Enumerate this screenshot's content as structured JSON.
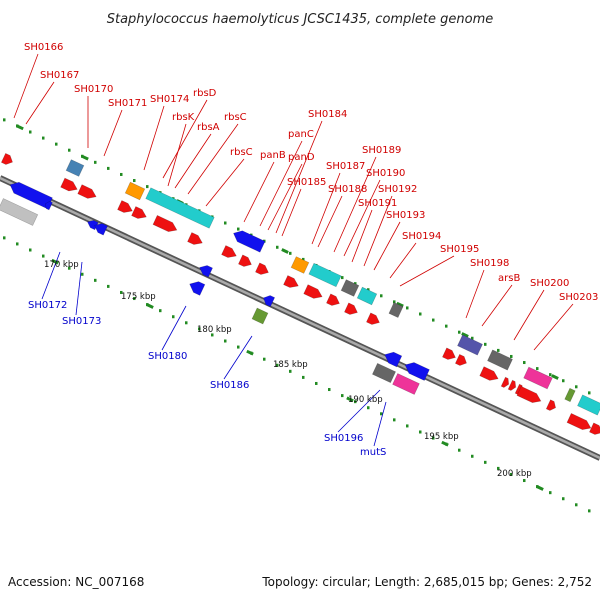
{
  "title": "Staphylococcus haemolyticus JCSC1435, complete genome",
  "footer": {
    "accession": "Accession: NC_007168",
    "summary": "Topology: circular; Length: 2,685,015 bp; Genes: 2,752"
  },
  "colors": {
    "forward_label": "#d00000",
    "reverse_label": "#0000cc",
    "forward_gene": "#ee1111",
    "reverse_gene": "#1111ee",
    "backbone": "#888888",
    "tick": "#228b22",
    "cyan_gene": "#22cccc",
    "orange_gene": "#ff9900",
    "grey_gene": "#666666",
    "magenta_gene": "#ee3399",
    "purple_gene": "#5555aa",
    "olive_gene": "#669933",
    "steel_gene": "#4682b4",
    "silver_gene": "#c0c0c0"
  },
  "position_ticks": [
    "170 kbp",
    "175 kbp",
    "180 kbp",
    "185 kbp",
    "190 kbp",
    "195 kbp",
    "200 kbp"
  ],
  "forward_labels": [
    "SH0166",
    "SH0167",
    "SH0170",
    "SH0171",
    "SH0174",
    "rbsD",
    "rbsK",
    "rbsA",
    "rbsC",
    "rbsC",
    "panB",
    "panC",
    "panD",
    "SH0184",
    "SH0185",
    "SH0187",
    "SH0188",
    "SH0189",
    "SH0190",
    "SH0191",
    "SH0192",
    "SH0193",
    "SH0194",
    "SH0195",
    "SH0198",
    "arsB",
    "SH0200",
    "SH0203"
  ],
  "reverse_labels": [
    "SH0172",
    "SH0173",
    "SH0180",
    "SH0186",
    "SH0196",
    "mutS"
  ]
}
